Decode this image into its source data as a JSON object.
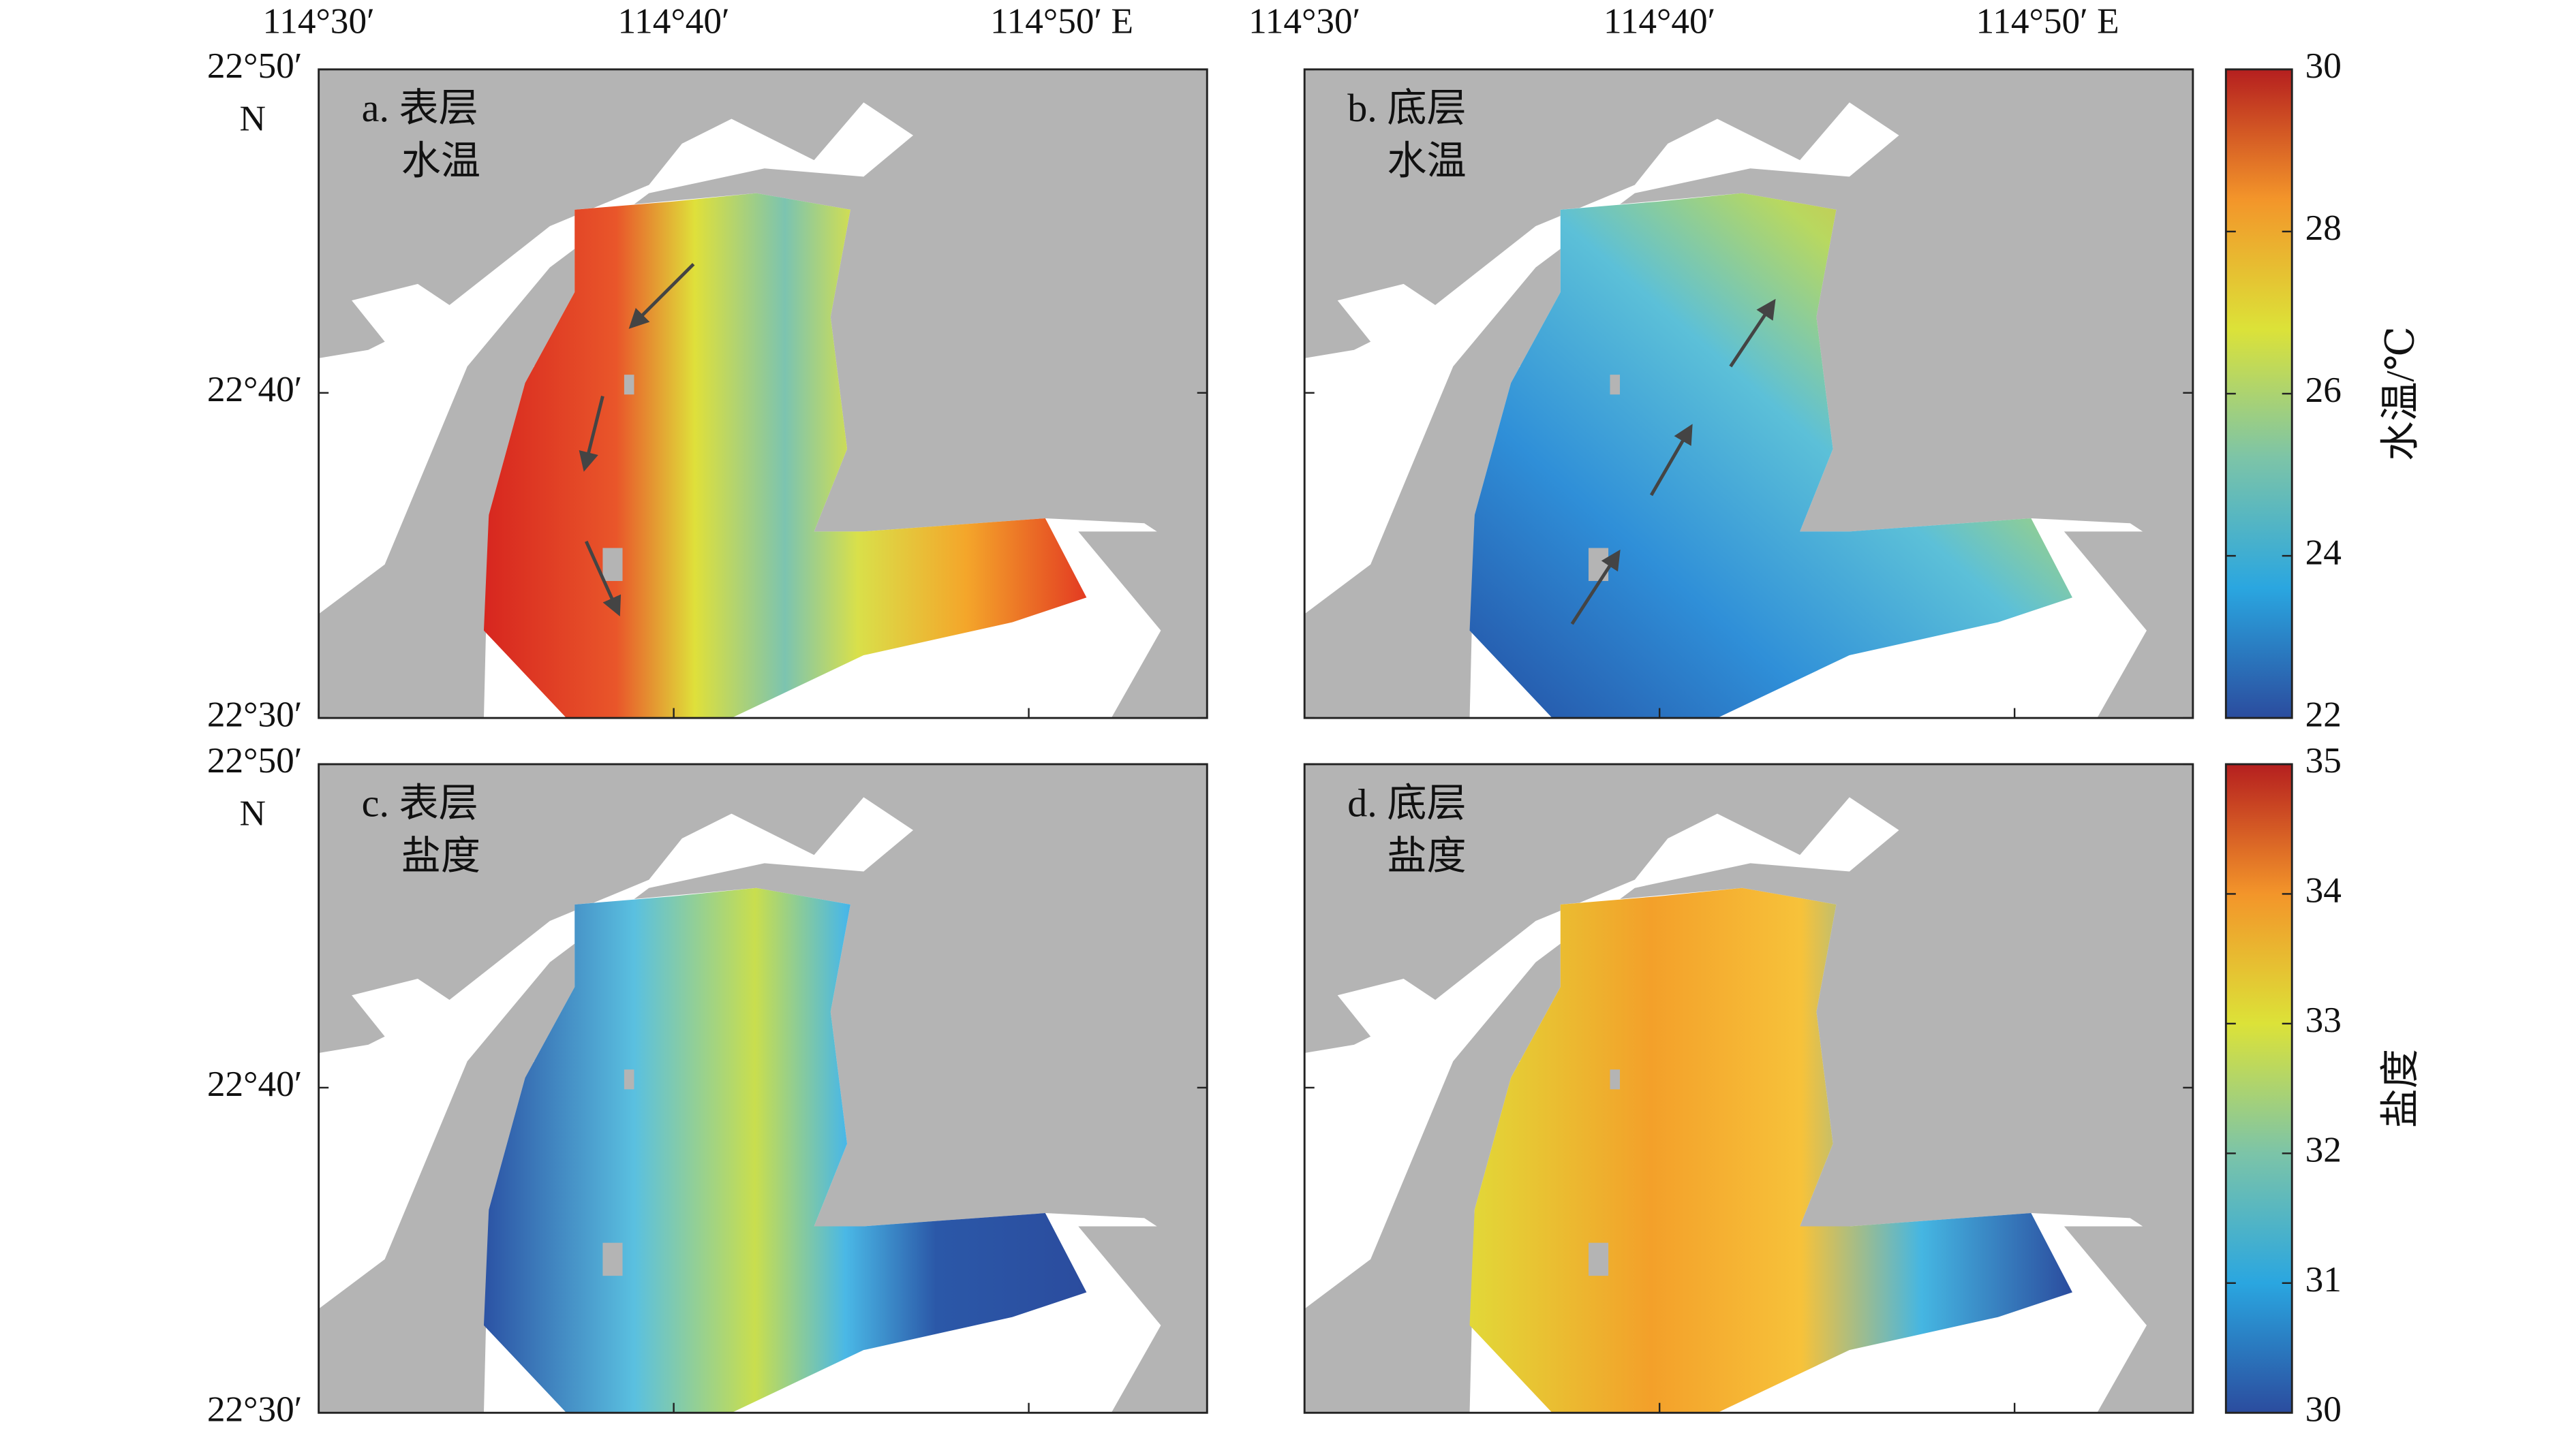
{
  "x_axis": {
    "ticks": [
      "114°30′",
      "114°40′",
      "114°50′ E"
    ]
  },
  "y_axis": {
    "ticks": [
      "22°50′",
      "22°40′",
      "22°30′"
    ],
    "hemisphere": "N"
  },
  "panels": [
    {
      "label": "a. 表层",
      "variable": "水温"
    },
    {
      "label": "b. 底层",
      "variable": "水温"
    },
    {
      "label": "c. 表层",
      "variable": "盐度"
    },
    {
      "label": "d. 底层",
      "variable": "盐度"
    }
  ],
  "colorbars": [
    {
      "title": "水温/℃",
      "lim": [
        22,
        30
      ],
      "ticks": [
        22,
        24,
        26,
        28,
        30
      ]
    },
    {
      "title": "盐度",
      "lim": [
        30,
        35
      ],
      "ticks": [
        30,
        31,
        32,
        33,
        34,
        35
      ]
    }
  ]
}
